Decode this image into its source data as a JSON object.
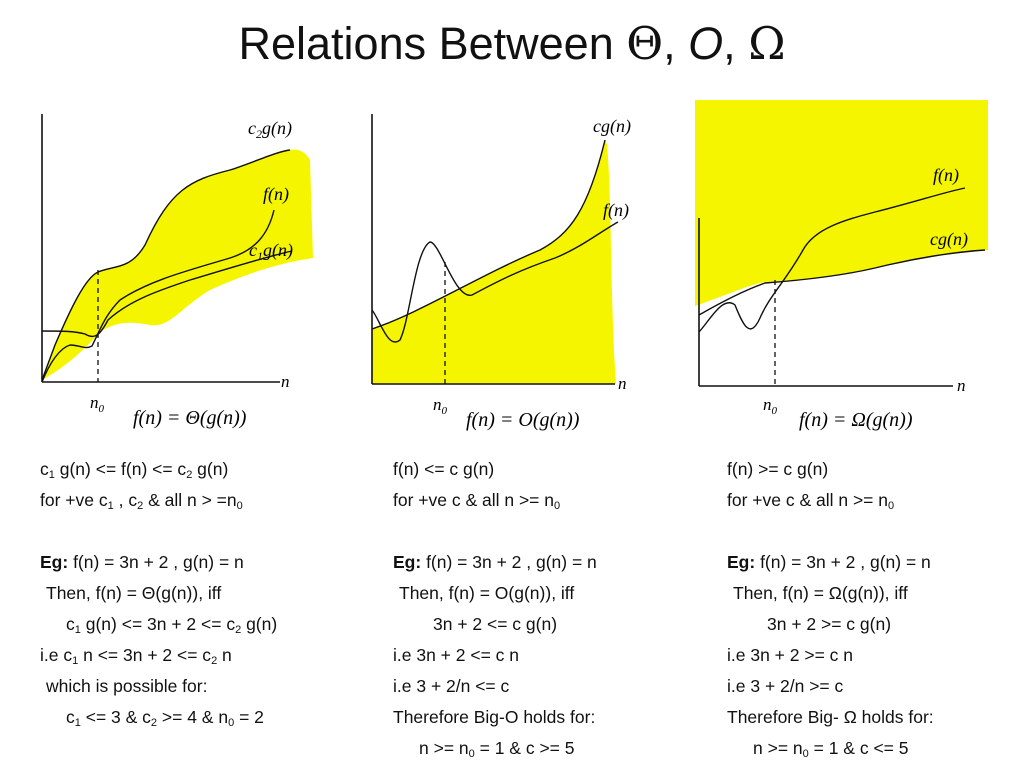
{
  "title": {
    "prefix": "Relations Between ",
    "theta": "Θ",
    "sep1": ", ",
    "o": "O",
    "sep2": ", ",
    "omega": "Ω"
  },
  "colors": {
    "fill": "#f5f500",
    "stroke": "#111111"
  },
  "graphs": [
    {
      "id": "theta",
      "upper_label": {
        "base": "c",
        "sub": "2",
        "rest": "g(n)"
      },
      "f_label": "f(n)",
      "lower_label": {
        "base": "c",
        "sub": "1",
        "rest": "g(n)"
      },
      "x_label": "n",
      "n0_label": {
        "base": "n",
        "sub": "0"
      },
      "caption": "f(n) = Θ(g(n))"
    },
    {
      "id": "bigo",
      "upper_label": {
        "base": "cg(n)"
      },
      "f_label": "f(n)",
      "x_label": "n",
      "n0_label": {
        "base": "n",
        "sub": "0"
      },
      "caption": "f(n) = O(g(n))"
    },
    {
      "id": "omega",
      "f_label": "f(n)",
      "lower_label": {
        "base": "cg(n)"
      },
      "x_label": "n",
      "n0_label": {
        "base": "n",
        "sub": "0"
      },
      "caption": "f(n) = Ω(g(n))"
    }
  ],
  "text_columns": {
    "theta": {
      "def1": {
        "a": "c",
        "a_sub": "1",
        "b": " g(n) <=  f(n) <= c",
        "b_sub": "2",
        "c": " g(n)"
      },
      "def2": {
        "a": "for +ve c",
        "a_sub": "1",
        "b": " , c",
        "b_sub": "2",
        "c": "  &  all n > =n",
        "c_sub": "0"
      },
      "eg_label": "Eg:",
      "eg": "  f(n) = 3n + 2    ,  g(n) = n",
      "then": "Then, f(n) = Θ(g(n)),  iff",
      "ineq1": {
        "a": "c",
        "a_sub": "1",
        "b": " g(n) <=  3n + 2 <= c",
        "b_sub": "2",
        "c": " g(n)"
      },
      "ie": {
        "a": "i.e    c",
        "a_sub": "1",
        "b": " n <=  3n + 2 <= c",
        "b_sub": "2",
        "c": " n"
      },
      "possible": "which is possible for:",
      "result": {
        "a": "c",
        "a_sub": "1",
        "b": " <= 3  &  c",
        "b_sub": "2",
        "c": " >= 4  & n",
        "c_sub": "0",
        "d": " = 2"
      }
    },
    "bigo": {
      "def1": "f(n) <= c g(n)",
      "def2": {
        "a": "for +ve c  &  all n >= n",
        "a_sub": "0"
      },
      "eg_label": "Eg:",
      "eg": "  f(n) = 3n + 2    ,  g(n) = n",
      "then": "Then, f(n) = O(g(n)),  iff",
      "ineq": "3n + 2 <= c g(n)",
      "ie1": "i.e    3n + 2 <= c n",
      "ie2": "i.e    3 + 2/n <= c",
      "therefore": "Therefore Big-O holds for:",
      "result": {
        "a": "n >= n",
        "a_sub": "0",
        "b": " = 1   &  c >= 5"
      }
    },
    "omega": {
      "def1": "f(n) >= c g(n)",
      "def2": {
        "a": "for +ve c  &  all n >= n",
        "a_sub": "0"
      },
      "eg_label": "Eg:",
      "eg": "  f(n) = 3n + 2    ,  g(n) = n",
      "then": "Then, f(n) = Ω(g(n)),  iff",
      "ineq": "3n + 2 >= c g(n)",
      "ie1": "i.e    3n + 2 >= c n",
      "ie2": "i.e    3 + 2/n  >= c",
      "therefore": "Therefore Big- Ω holds for:",
      "result": {
        "a": "n >= n",
        "a_sub": "0",
        "b": " = 1   &  c <= 5"
      }
    }
  }
}
